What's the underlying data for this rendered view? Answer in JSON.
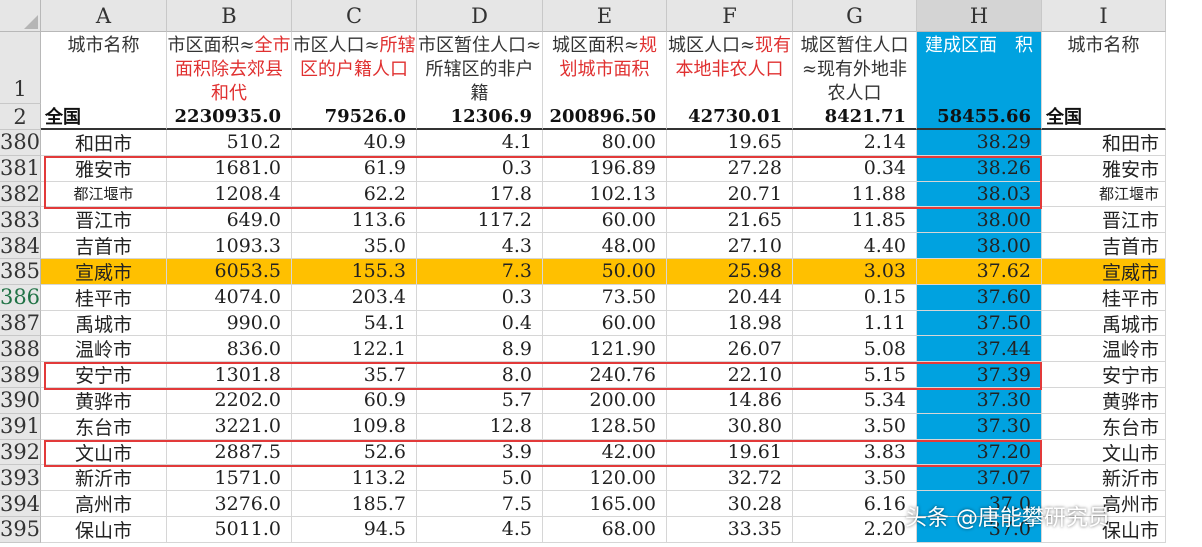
{
  "columns": [
    "A",
    "B",
    "C",
    "D",
    "E",
    "F",
    "G",
    "H",
    "I"
  ],
  "header_row_number": "1",
  "headers": [
    {
      "black": "城市名称",
      "red": ""
    },
    {
      "black": "市区面积≈",
      "red": "全市面积除去郊县和代"
    },
    {
      "black": "市区人口≈",
      "red": "所辖区的户籍人口"
    },
    {
      "black": "市区暂住人口≈所辖区的非户籍",
      "red": ""
    },
    {
      "black": "城区面积≈",
      "red": "规划城市面积"
    },
    {
      "black": "城区人口≈",
      "red": "现有本地非农人口"
    },
    {
      "black": "城区暂住人口≈现有外地非农人口",
      "red": ""
    },
    {
      "black": "建成区面　积",
      "red": ""
    },
    {
      "black": "城市名称",
      "red": ""
    }
  ],
  "total_row": {
    "row_number": "2",
    "cells": [
      "全国",
      "2230935.0",
      "79526.0",
      "12306.9",
      "200896.50",
      "42730.01",
      "8421.71",
      "58455.66",
      "全国"
    ]
  },
  "rows": [
    {
      "num": "380",
      "cells": [
        "和田市",
        "510.2",
        "40.9",
        "4.1",
        "80.00",
        "19.65",
        "2.14",
        "38.29",
        "和田市"
      ]
    },
    {
      "num": "381",
      "cells": [
        "雅安市",
        "1681.0",
        "61.9",
        "0.3",
        "196.89",
        "27.28",
        "0.34",
        "38.26",
        "雅安市"
      ]
    },
    {
      "num": "382",
      "cells": [
        "都江堰市",
        "1208.4",
        "62.2",
        "17.8",
        "102.13",
        "20.71",
        "11.88",
        "38.03",
        "都江堰市"
      ]
    },
    {
      "num": "383",
      "cells": [
        "晋江市",
        "649.0",
        "113.6",
        "117.2",
        "60.00",
        "21.65",
        "11.85",
        "38.00",
        "晋江市"
      ]
    },
    {
      "num": "384",
      "cells": [
        "吉首市",
        "1093.3",
        "35.0",
        "4.3",
        "48.00",
        "27.10",
        "4.40",
        "38.00",
        "吉首市"
      ]
    },
    {
      "num": "385",
      "cells": [
        "宣威市",
        "6053.5",
        "155.3",
        "7.3",
        "50.00",
        "25.98",
        "3.03",
        "37.62",
        "宣威市"
      ]
    },
    {
      "num": "386",
      "cells": [
        "桂平市",
        "4074.0",
        "203.4",
        "0.3",
        "73.50",
        "20.44",
        "0.15",
        "37.60",
        "桂平市"
      ]
    },
    {
      "num": "387",
      "cells": [
        "禹城市",
        "990.0",
        "54.1",
        "0.4",
        "60.00",
        "18.98",
        "1.11",
        "37.50",
        "禹城市"
      ]
    },
    {
      "num": "388",
      "cells": [
        "温岭市",
        "836.0",
        "122.1",
        "8.9",
        "121.90",
        "26.07",
        "5.08",
        "37.44",
        "温岭市"
      ]
    },
    {
      "num": "389",
      "cells": [
        "安宁市",
        "1301.8",
        "35.7",
        "8.0",
        "240.76",
        "22.10",
        "5.15",
        "37.39",
        "安宁市"
      ]
    },
    {
      "num": "390",
      "cells": [
        "黄骅市",
        "2202.0",
        "60.9",
        "5.7",
        "200.00",
        "14.86",
        "5.34",
        "37.30",
        "黄骅市"
      ]
    },
    {
      "num": "391",
      "cells": [
        "东台市",
        "3221.0",
        "109.8",
        "12.8",
        "128.50",
        "30.80",
        "3.50",
        "37.30",
        "东台市"
      ]
    },
    {
      "num": "392",
      "cells": [
        "文山市",
        "2887.5",
        "52.6",
        "3.9",
        "42.00",
        "19.61",
        "3.83",
        "37.20",
        "文山市"
      ]
    },
    {
      "num": "393",
      "cells": [
        "新沂市",
        "1571.0",
        "113.2",
        "5.0",
        "120.00",
        "32.72",
        "3.50",
        "37.07",
        "新沂市"
      ]
    },
    {
      "num": "394",
      "cells": [
        "高州市",
        "3276.0",
        "185.7",
        "7.5",
        "165.00",
        "30.28",
        "6.16",
        "37.0",
        "高州市"
      ]
    },
    {
      "num": "395",
      "cells": [
        "保山市",
        "5011.0",
        "94.5",
        "4.5",
        "68.00",
        "33.35",
        "2.20",
        "37.0",
        "保山市"
      ]
    }
  ],
  "watermark": "头条 @唐能攀研究员",
  "colors": {
    "highlight_column": "#00a2e0",
    "highlight_row": "#ffc000",
    "box_border": "#e23a3a",
    "header_red": "#e03030"
  }
}
